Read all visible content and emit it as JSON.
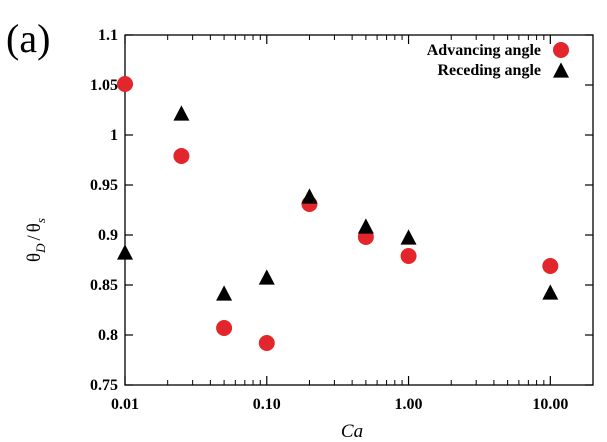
{
  "chart_data": {
    "type": "scatter",
    "panel_label": "(a)",
    "xlabel": "Ca",
    "ylabel_theta": "θ",
    "ylabel_sub1": "D",
    "ylabel_sep": "/",
    "ylabel_sub2": "s",
    "x_scale": "log",
    "xlim": [
      0.01,
      20
    ],
    "ylim": [
      0.75,
      1.1
    ],
    "x_ticks": [
      {
        "value": 0.01,
        "label": "0.01"
      },
      {
        "value": 0.1,
        "label": "0.10"
      },
      {
        "value": 1,
        "label": "1.00"
      },
      {
        "value": 10,
        "label": "10.00"
      }
    ],
    "y_ticks": [
      {
        "value": 0.75,
        "label": "0.75"
      },
      {
        "value": 0.8,
        "label": "0.8"
      },
      {
        "value": 0.85,
        "label": "0.85"
      },
      {
        "value": 0.9,
        "label": "0.9"
      },
      {
        "value": 0.95,
        "label": "0.95"
      },
      {
        "value": 1.0,
        "label": "1"
      },
      {
        "value": 1.05,
        "label": "1.05"
      },
      {
        "value": 1.1,
        "label": "1.1"
      }
    ],
    "grid": false,
    "legend_position": "top-right",
    "series": [
      {
        "name": "Advancing angle",
        "marker": "circle",
        "color": "#e3262b",
        "points": [
          {
            "x": 0.01,
            "y": 1.051
          },
          {
            "x": 0.025,
            "y": 0.979
          },
          {
            "x": 0.05,
            "y": 0.807
          },
          {
            "x": 0.1,
            "y": 0.792
          },
          {
            "x": 0.2,
            "y": 0.931
          },
          {
            "x": 0.5,
            "y": 0.898
          },
          {
            "x": 1.0,
            "y": 0.879
          },
          {
            "x": 10.0,
            "y": 0.869
          }
        ]
      },
      {
        "name": "Receding angle",
        "marker": "triangle",
        "color": "#000000",
        "points": [
          {
            "x": 0.01,
            "y": 0.883
          },
          {
            "x": 0.025,
            "y": 1.022
          },
          {
            "x": 0.05,
            "y": 0.842
          },
          {
            "x": 0.1,
            "y": 0.858
          },
          {
            "x": 0.2,
            "y": 0.939
          },
          {
            "x": 0.5,
            "y": 0.909
          },
          {
            "x": 1.0,
            "y": 0.898
          },
          {
            "x": 10.0,
            "y": 0.843
          }
        ]
      }
    ]
  }
}
